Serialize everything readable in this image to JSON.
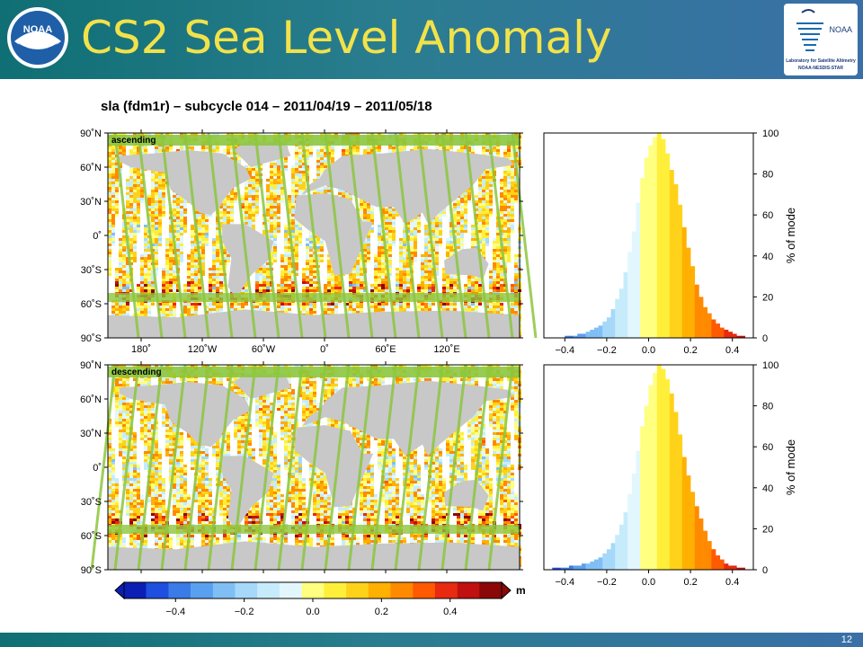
{
  "slide": {
    "title": "CS2 Sea Level Anomaly",
    "page_number": "12",
    "logo_left": "NOAA",
    "logo_right": {
      "text": "NOAA",
      "line1": "Laboratory for Satellite Altimetry",
      "line2": "NOAA-NESDIS-STAR"
    }
  },
  "colors": {
    "header_start": "#0f6f74",
    "header_end": "#3a6fa8",
    "title": "#f2e24a",
    "land": "#c8c8c8",
    "ice": "#8cc63f"
  },
  "chart_data": [
    {
      "type": "heatmap",
      "title": "sla (fdm1r) – subcycle 014 – 2011/04/19 – 2011/05/18",
      "panels": [
        {
          "label": "ascending"
        },
        {
          "label": "descending"
        }
      ],
      "y_ticks": [
        "90˚N",
        "60˚N",
        "30˚N",
        "0˚",
        "30˚S",
        "60˚S",
        "90˚S"
      ],
      "x_ticks": [
        "180˚",
        "120˚W",
        "60˚W",
        "0˚",
        "60˚E",
        "120˚E"
      ],
      "colorbar": {
        "unit": "m",
        "range": [
          -0.55,
          0.55
        ],
        "ticks": [
          "−0.4",
          "−0.2",
          "0.0",
          "0.2",
          "0.4"
        ],
        "colors": [
          "#0b1fb5",
          "#1f4fe0",
          "#3a7be8",
          "#5aa0f0",
          "#80bff5",
          "#a6d8fa",
          "#c6ecfc",
          "#e2f7fd",
          "#ffff80",
          "#ffef3a",
          "#ffd21a",
          "#ffb000",
          "#ff8a00",
          "#ff5a00",
          "#e82a10",
          "#c01010",
          "#8a0808"
        ]
      }
    },
    {
      "type": "bar",
      "name": "histogram",
      "panels": [
        "ascending",
        "descending"
      ],
      "xlim": [
        -0.5,
        0.5
      ],
      "ylim": [
        0,
        100
      ],
      "x_ticks": [
        "−0.4",
        "−0.2",
        "0.0",
        "0.2",
        "0.4"
      ],
      "y_ticks": [
        "0",
        "20",
        "40",
        "60",
        "80",
        "100"
      ],
      "ylabel": "% of mode",
      "bin_width": 0.02,
      "ascending": {
        "x": [
          -0.49,
          -0.47,
          -0.45,
          -0.43,
          -0.41,
          -0.39,
          -0.37,
          -0.35,
          -0.33,
          -0.31,
          -0.29,
          -0.27,
          -0.25,
          -0.23,
          -0.21,
          -0.19,
          -0.17,
          -0.15,
          -0.13,
          -0.11,
          -0.09,
          -0.07,
          -0.05,
          -0.03,
          -0.01,
          0.01,
          0.03,
          0.05,
          0.07,
          0.09,
          0.11,
          0.13,
          0.15,
          0.17,
          0.19,
          0.21,
          0.23,
          0.25,
          0.27,
          0.29,
          0.31,
          0.33,
          0.35,
          0.37,
          0.39,
          0.41,
          0.43,
          0.45,
          0.47,
          0.49
        ],
        "y": [
          0,
          0,
          0,
          0,
          0,
          1,
          1,
          1,
          2,
          2,
          3,
          4,
          5,
          6,
          8,
          10,
          14,
          19,
          24,
          32,
          42,
          52,
          66,
          78,
          88,
          94,
          98,
          100,
          97,
          90,
          82,
          75,
          65,
          54,
          44,
          35,
          26,
          20,
          15,
          12,
          9,
          7,
          5,
          4,
          3,
          2,
          1,
          1,
          0,
          0
        ]
      },
      "descending": {
        "x": [
          -0.49,
          -0.47,
          -0.45,
          -0.43,
          -0.41,
          -0.39,
          -0.37,
          -0.35,
          -0.33,
          -0.31,
          -0.29,
          -0.27,
          -0.25,
          -0.23,
          -0.21,
          -0.19,
          -0.17,
          -0.15,
          -0.13,
          -0.11,
          -0.09,
          -0.07,
          -0.05,
          -0.03,
          -0.01,
          0.01,
          0.03,
          0.05,
          0.07,
          0.09,
          0.11,
          0.13,
          0.15,
          0.17,
          0.19,
          0.21,
          0.23,
          0.25,
          0.27,
          0.29,
          0.31,
          0.33,
          0.35,
          0.37,
          0.39,
          0.41,
          0.43,
          0.45,
          0.47,
          0.49
        ],
        "y": [
          0,
          0,
          1,
          1,
          1,
          1,
          2,
          2,
          2,
          3,
          3,
          4,
          5,
          6,
          8,
          10,
          13,
          17,
          22,
          28,
          37,
          47,
          58,
          70,
          80,
          90,
          96,
          100,
          98,
          93,
          86,
          77,
          66,
          55,
          46,
          38,
          31,
          25,
          19,
          14,
          10,
          7,
          5,
          3,
          2,
          2,
          1,
          1,
          0,
          0
        ]
      }
    }
  ]
}
